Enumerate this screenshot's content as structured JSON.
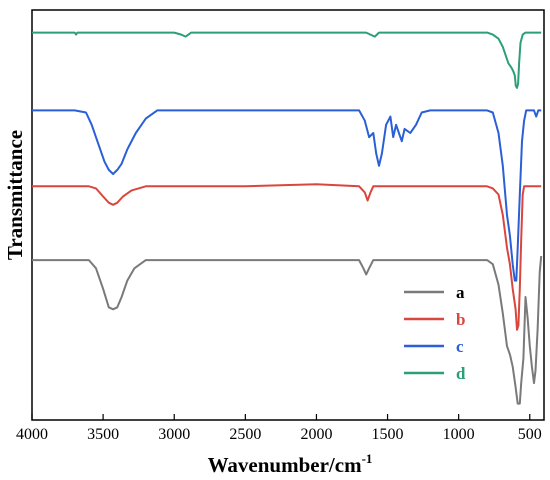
{
  "chart_data": {
    "type": "line",
    "title": "",
    "xlabel": "Wavenumber/cm",
    "xlabel_sup": "-1",
    "ylabel": "Transmittance",
    "xlim": [
      4000,
      400
    ],
    "x_reversed": true,
    "y_ticks_shown": false,
    "grid": false,
    "legend_position": "bottom-right",
    "x_ticks": [
      "4000",
      "3500",
      "3000",
      "2500",
      "2000",
      "1500",
      "1000",
      "500"
    ],
    "x_tick_values": [
      4000,
      3500,
      3000,
      2500,
      2000,
      1500,
      1000,
      500
    ],
    "series": [
      {
        "name": "a",
        "color": "#7a7a7a",
        "points": [
          [
            4000,
            0.39
          ],
          [
            3750,
            0.39
          ],
          [
            3600,
            0.39
          ],
          [
            3550,
            0.37
          ],
          [
            3500,
            0.32
          ],
          [
            3460,
            0.275
          ],
          [
            3430,
            0.27
          ],
          [
            3400,
            0.275
          ],
          [
            3370,
            0.3
          ],
          [
            3330,
            0.34
          ],
          [
            3280,
            0.37
          ],
          [
            3200,
            0.39
          ],
          [
            3000,
            0.39
          ],
          [
            2500,
            0.39
          ],
          [
            2000,
            0.39
          ],
          [
            1700,
            0.39
          ],
          [
            1670,
            0.37
          ],
          [
            1650,
            0.355
          ],
          [
            1630,
            0.37
          ],
          [
            1600,
            0.39
          ],
          [
            1200,
            0.39
          ],
          [
            800,
            0.39
          ],
          [
            760,
            0.38
          ],
          [
            720,
            0.33
          ],
          [
            690,
            0.26
          ],
          [
            660,
            0.18
          ],
          [
            640,
            0.16
          ],
          [
            620,
            0.13
          ],
          [
            600,
            0.08
          ],
          [
            585,
            0.04
          ],
          [
            570,
            0.04
          ],
          [
            560,
            0.09
          ],
          [
            545,
            0.15
          ],
          [
            530,
            0.3
          ],
          [
            515,
            0.25
          ],
          [
            500,
            0.18
          ],
          [
            485,
            0.13
          ],
          [
            470,
            0.09
          ],
          [
            460,
            0.12
          ],
          [
            445,
            0.22
          ],
          [
            430,
            0.36
          ],
          [
            420,
            0.4
          ]
        ]
      },
      {
        "name": "b",
        "color": "#d9463e",
        "points": [
          [
            4000,
            0.57
          ],
          [
            3800,
            0.57
          ],
          [
            3600,
            0.57
          ],
          [
            3550,
            0.565
          ],
          [
            3500,
            0.545
          ],
          [
            3460,
            0.53
          ],
          [
            3430,
            0.525
          ],
          [
            3400,
            0.53
          ],
          [
            3360,
            0.545
          ],
          [
            3300,
            0.56
          ],
          [
            3200,
            0.57
          ],
          [
            3000,
            0.57
          ],
          [
            2500,
            0.57
          ],
          [
            2000,
            0.575
          ],
          [
            1700,
            0.57
          ],
          [
            1660,
            0.555
          ],
          [
            1640,
            0.535
          ],
          [
            1620,
            0.555
          ],
          [
            1600,
            0.57
          ],
          [
            1200,
            0.57
          ],
          [
            800,
            0.57
          ],
          [
            760,
            0.565
          ],
          [
            720,
            0.55
          ],
          [
            690,
            0.5
          ],
          [
            660,
            0.42
          ],
          [
            640,
            0.38
          ],
          [
            620,
            0.32
          ],
          [
            600,
            0.27
          ],
          [
            590,
            0.22
          ],
          [
            580,
            0.23
          ],
          [
            570,
            0.32
          ],
          [
            560,
            0.44
          ],
          [
            550,
            0.55
          ],
          [
            540,
            0.57
          ],
          [
            500,
            0.57
          ],
          [
            450,
            0.57
          ],
          [
            420,
            0.57
          ]
        ]
      },
      {
        "name": "c",
        "color": "#2a5fd6",
        "points": [
          [
            4000,
            0.755
          ],
          [
            3700,
            0.755
          ],
          [
            3620,
            0.75
          ],
          [
            3580,
            0.72
          ],
          [
            3530,
            0.67
          ],
          [
            3490,
            0.63
          ],
          [
            3460,
            0.61
          ],
          [
            3430,
            0.6
          ],
          [
            3400,
            0.61
          ],
          [
            3370,
            0.625
          ],
          [
            3330,
            0.66
          ],
          [
            3270,
            0.7
          ],
          [
            3200,
            0.735
          ],
          [
            3120,
            0.755
          ],
          [
            3000,
            0.755
          ],
          [
            2500,
            0.755
          ],
          [
            2000,
            0.755
          ],
          [
            1700,
            0.755
          ],
          [
            1660,
            0.73
          ],
          [
            1630,
            0.69
          ],
          [
            1600,
            0.7
          ],
          [
            1580,
            0.65
          ],
          [
            1560,
            0.62
          ],
          [
            1540,
            0.65
          ],
          [
            1510,
            0.72
          ],
          [
            1480,
            0.74
          ],
          [
            1460,
            0.69
          ],
          [
            1440,
            0.72
          ],
          [
            1420,
            0.7
          ],
          [
            1400,
            0.68
          ],
          [
            1380,
            0.71
          ],
          [
            1340,
            0.7
          ],
          [
            1300,
            0.72
          ],
          [
            1260,
            0.75
          ],
          [
            1200,
            0.755
          ],
          [
            800,
            0.755
          ],
          [
            760,
            0.75
          ],
          [
            720,
            0.7
          ],
          [
            690,
            0.62
          ],
          [
            660,
            0.5
          ],
          [
            640,
            0.45
          ],
          [
            620,
            0.38
          ],
          [
            605,
            0.34
          ],
          [
            595,
            0.34
          ],
          [
            585,
            0.42
          ],
          [
            570,
            0.55
          ],
          [
            555,
            0.68
          ],
          [
            540,
            0.73
          ],
          [
            525,
            0.755
          ],
          [
            500,
            0.755
          ],
          [
            470,
            0.755
          ],
          [
            455,
            0.74
          ],
          [
            440,
            0.755
          ],
          [
            420,
            0.755
          ]
        ]
      },
      {
        "name": "d",
        "color": "#2c9e79",
        "points": [
          [
            4000,
            0.945
          ],
          [
            3700,
            0.945
          ],
          [
            3690,
            0.94
          ],
          [
            3680,
            0.945
          ],
          [
            3000,
            0.945
          ],
          [
            2950,
            0.94
          ],
          [
            2920,
            0.935
          ],
          [
            2880,
            0.945
          ],
          [
            2500,
            0.945
          ],
          [
            2000,
            0.945
          ],
          [
            1650,
            0.945
          ],
          [
            1620,
            0.94
          ],
          [
            1590,
            0.935
          ],
          [
            1560,
            0.945
          ],
          [
            1200,
            0.945
          ],
          [
            800,
            0.945
          ],
          [
            760,
            0.94
          ],
          [
            720,
            0.93
          ],
          [
            690,
            0.91
          ],
          [
            670,
            0.89
          ],
          [
            650,
            0.87
          ],
          [
            630,
            0.86
          ],
          [
            615,
            0.85
          ],
          [
            605,
            0.84
          ],
          [
            598,
            0.815
          ],
          [
            590,
            0.81
          ],
          [
            582,
            0.82
          ],
          [
            575,
            0.87
          ],
          [
            565,
            0.92
          ],
          [
            550,
            0.94
          ],
          [
            530,
            0.945
          ],
          [
            500,
            0.945
          ],
          [
            460,
            0.945
          ],
          [
            420,
            0.945
          ]
        ]
      }
    ]
  }
}
